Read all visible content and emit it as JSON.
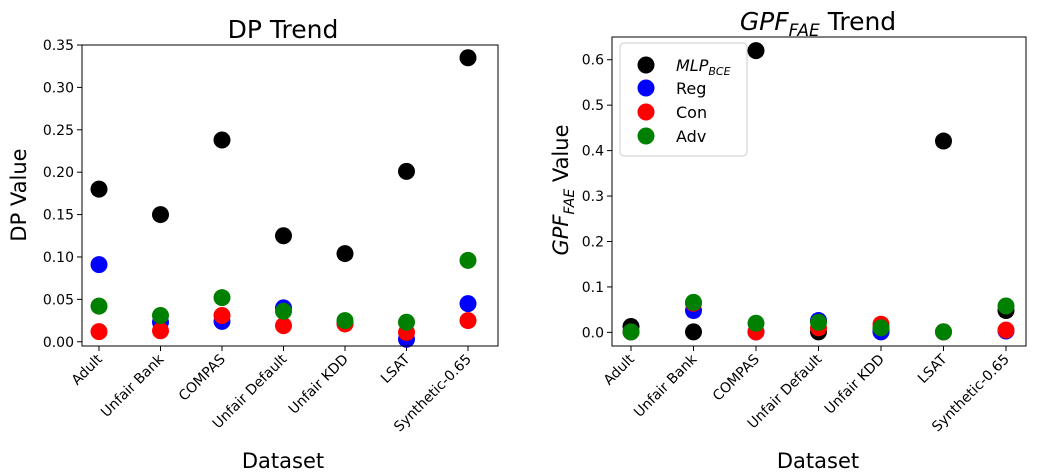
{
  "chart_data": [
    {
      "type": "scatter",
      "title": "DP Trend",
      "xlabel": "Dataset",
      "ylabel": "DP Value",
      "categories": [
        "Adult",
        "Unfair Bank",
        "COMPAS",
        "Unfair Default",
        "Unfair KDD",
        "LSAT",
        "Synthetic-0.65"
      ],
      "ylim": [
        -0.005,
        0.35
      ],
      "yticks": [
        "0.00",
        "0.05",
        "0.10",
        "0.15",
        "0.20",
        "0.25",
        "0.30",
        "0.35"
      ],
      "grid": false,
      "series": [
        {
          "key": "mlp",
          "color": "#000000",
          "values": [
            0.18,
            0.15,
            0.238,
            0.125,
            0.104,
            0.201,
            0.335
          ]
        },
        {
          "key": "reg",
          "color": "#0000ff",
          "values": [
            0.091,
            0.023,
            0.024,
            0.04,
            0.022,
            0.003,
            0.045
          ]
        },
        {
          "key": "con",
          "color": "#ff0000",
          "values": [
            0.012,
            0.013,
            0.031,
            0.019,
            0.021,
            0.011,
            0.025
          ]
        },
        {
          "key": "adv",
          "color": "#008000",
          "values": [
            0.042,
            0.031,
            0.052,
            0.036,
            0.025,
            0.023,
            0.096
          ]
        }
      ]
    },
    {
      "type": "scatter",
      "title_base": "GPF",
      "title_sub": "FAE",
      "title_rest": " Trend",
      "xlabel": "Dataset",
      "ylabel_base": "GPF",
      "ylabel_sub": "FAE",
      "ylabel_rest": " Value",
      "categories": [
        "Adult",
        "Unfair Bank",
        "COMPAS",
        "Unfair Default",
        "Unfair KDD",
        "LSAT",
        "Synthetic-0.65"
      ],
      "ylim": [
        -0.03,
        0.65
      ],
      "yticks": [
        "0.0",
        "0.1",
        "0.2",
        "0.3",
        "0.4",
        "0.5",
        "0.6"
      ],
      "grid": false,
      "legend_position": "top-left",
      "series": [
        {
          "key": "mlp",
          "name_base": "MLP",
          "name_sub": "BCE",
          "color": "#000000",
          "values": [
            0.013,
            0.001,
            0.62,
            0.001,
            0.003,
            0.421,
            0.048
          ]
        },
        {
          "key": "reg",
          "name": "Reg",
          "color": "#0000ff",
          "values": [
            0.001,
            0.048,
            0.001,
            0.026,
            0.001,
            0.001,
            0.003
          ]
        },
        {
          "key": "con",
          "name": "Con",
          "color": "#ff0000",
          "values": [
            0.001,
            0.064,
            0.001,
            0.01,
            0.018,
            0.001,
            0.005
          ]
        },
        {
          "key": "adv",
          "name": "Adv",
          "color": "#008000",
          "values": [
            0.001,
            0.066,
            0.02,
            0.022,
            0.01,
            0.001,
            0.058
          ]
        }
      ]
    }
  ]
}
